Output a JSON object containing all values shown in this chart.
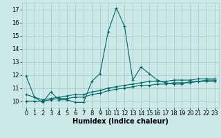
{
  "title": "",
  "xlabel": "Humidex (Indice chaleur)",
  "ylabel": "",
  "background_color": "#cce8e8",
  "grid_color": "#aacccc",
  "line_color": "#006666",
  "xlim": [
    -0.5,
    23.5
  ],
  "ylim": [
    9.5,
    17.5
  ],
  "yticks": [
    10,
    11,
    12,
    13,
    14,
    15,
    16,
    17
  ],
  "xticks": [
    0,
    1,
    2,
    3,
    4,
    5,
    6,
    7,
    8,
    9,
    10,
    11,
    12,
    13,
    14,
    15,
    16,
    17,
    18,
    19,
    20,
    21,
    22,
    23
  ],
  "series1_x": [
    0,
    1,
    2,
    3,
    4,
    5,
    6,
    7,
    8,
    9,
    10,
    11,
    12,
    13,
    14,
    15,
    16,
    17,
    18,
    19,
    20,
    21,
    22,
    23
  ],
  "series1_y": [
    11.9,
    10.3,
    9.9,
    10.7,
    10.1,
    10.1,
    9.9,
    9.9,
    11.5,
    12.1,
    15.3,
    17.1,
    15.7,
    11.6,
    12.6,
    12.1,
    11.6,
    11.4,
    11.3,
    11.3,
    11.5,
    11.5,
    11.6,
    11.6
  ],
  "series2_x": [
    0,
    1,
    2,
    3,
    4,
    5,
    6,
    7,
    8,
    9,
    10,
    11,
    12,
    13,
    14,
    15,
    16,
    17,
    18,
    19,
    20,
    21,
    22,
    23
  ],
  "series2_y": [
    10.5,
    10.3,
    10.1,
    10.2,
    10.3,
    10.4,
    10.5,
    10.5,
    10.7,
    10.8,
    11.0,
    11.1,
    11.2,
    11.3,
    11.4,
    11.5,
    11.5,
    11.5,
    11.6,
    11.6,
    11.6,
    11.7,
    11.7,
    11.7
  ],
  "series3_x": [
    0,
    1,
    2,
    3,
    4,
    5,
    6,
    7,
    8,
    9,
    10,
    11,
    12,
    13,
    14,
    15,
    16,
    17,
    18,
    19,
    20,
    21,
    22,
    23
  ],
  "series3_y": [
    10.0,
    10.0,
    10.0,
    10.1,
    10.2,
    10.2,
    10.3,
    10.3,
    10.5,
    10.6,
    10.8,
    10.9,
    11.0,
    11.1,
    11.2,
    11.2,
    11.3,
    11.3,
    11.4,
    11.4,
    11.4,
    11.5,
    11.5,
    11.5
  ],
  "tick_fontsize": 6,
  "xlabel_fontsize": 7,
  "marker_size": 3,
  "line_width": 0.8
}
